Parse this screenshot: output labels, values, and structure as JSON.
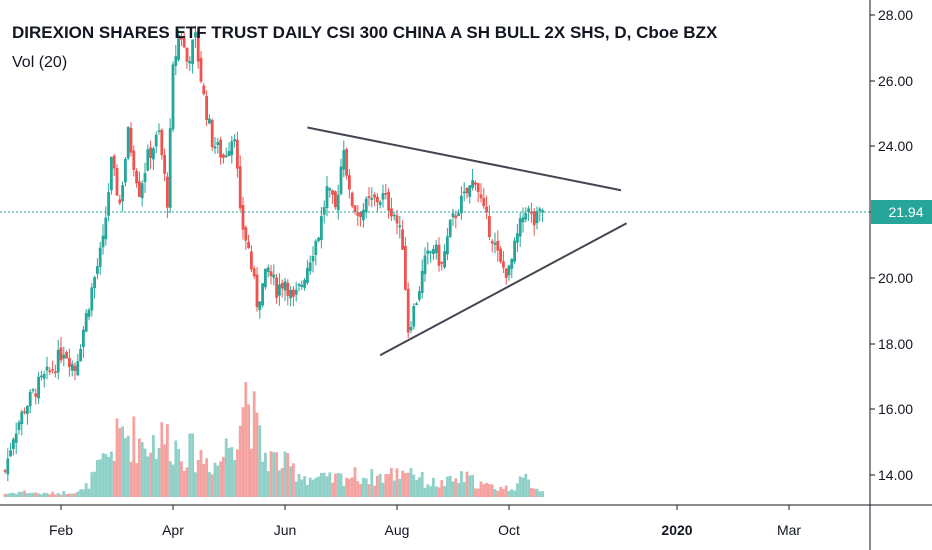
{
  "chart_data": {
    "type": "candlestick",
    "title": "DIREXION SHARES ETF TRUST DAILY CSI 300 CHINA A SH BULL 2X SHS, D, Cboe BZX",
    "volume_label": "Vol (20)",
    "y_ticks": [
      "28.00",
      "26.00",
      "24.00",
      "22.00",
      "20.00",
      "18.00",
      "16.00",
      "14.00"
    ],
    "y_tick_values": [
      28,
      26,
      24,
      22,
      20,
      18,
      16,
      14
    ],
    "x_ticks": [
      {
        "label": "Feb",
        "month": 1,
        "bold": false
      },
      {
        "label": "Apr",
        "month": 3,
        "bold": false
      },
      {
        "label": "Jun",
        "month": 5,
        "bold": false
      },
      {
        "label": "Aug",
        "month": 7,
        "bold": false
      },
      {
        "label": "Oct",
        "month": 9,
        "bold": false
      },
      {
        "label": "2020",
        "month": 12,
        "bold": true
      },
      {
        "label": "Mar",
        "month": 14,
        "bold": false
      }
    ],
    "last_price": "21.94",
    "last_price_value": 21.94,
    "colors": {
      "up": "#26a69a",
      "down": "#ef5350",
      "volume_up": "#8fd0c8",
      "volume_down": "#f5a3a1",
      "price_line": "#26a69a",
      "trendline": "#434651"
    },
    "trendlines": [
      {
        "from": {
          "month": 5.4,
          "value": 24.5
        },
        "to": {
          "month": 11.0,
          "value": 22.6
        }
      },
      {
        "from": {
          "month": 6.7,
          "value": 17.6
        },
        "to": {
          "month": 11.1,
          "value": 21.6
        }
      }
    ],
    "path": [
      [
        0.0,
        14.1
      ],
      [
        0.15,
        15.2
      ],
      [
        0.35,
        16.0
      ],
      [
        0.6,
        16.7
      ],
      [
        0.85,
        17.2
      ],
      [
        1.05,
        17.8
      ],
      [
        1.25,
        17.2
      ],
      [
        1.4,
        18.4
      ],
      [
        1.55,
        19.6
      ],
      [
        1.75,
        21.0
      ],
      [
        1.9,
        23.4
      ],
      [
        2.05,
        22.2
      ],
      [
        2.2,
        24.3
      ],
      [
        2.4,
        22.6
      ],
      [
        2.55,
        23.6
      ],
      [
        2.75,
        24.3
      ],
      [
        2.9,
        22.3
      ],
      [
        3.0,
        26.2
      ],
      [
        3.12,
        27.5
      ],
      [
        3.25,
        26.5
      ],
      [
        3.4,
        27.2
      ],
      [
        3.55,
        25.4
      ],
      [
        3.7,
        24.1
      ],
      [
        3.9,
        23.6
      ],
      [
        4.1,
        24.4
      ],
      [
        4.2,
        21.8
      ],
      [
        4.35,
        20.8
      ],
      [
        4.5,
        19.2
      ],
      [
        4.7,
        20.2
      ],
      [
        4.85,
        19.6
      ],
      [
        5.0,
        19.9
      ],
      [
        5.15,
        19.2
      ],
      [
        5.3,
        19.8
      ],
      [
        5.45,
        20.6
      ],
      [
        5.6,
        21.3
      ],
      [
        5.75,
        22.6
      ],
      [
        5.9,
        22.0
      ],
      [
        6.05,
        24.0
      ],
      [
        6.15,
        22.4
      ],
      [
        6.3,
        21.9
      ],
      [
        6.5,
        22.2
      ],
      [
        6.75,
        22.4
      ],
      [
        6.95,
        21.9
      ],
      [
        7.1,
        21.0
      ],
      [
        7.2,
        18.4
      ],
      [
        7.35,
        19.3
      ],
      [
        7.5,
        20.4
      ],
      [
        7.65,
        20.9
      ],
      [
        7.8,
        20.3
      ],
      [
        7.95,
        21.5
      ],
      [
        8.1,
        22.1
      ],
      [
        8.25,
        22.5
      ],
      [
        8.4,
        23.0
      ],
      [
        8.55,
        21.9
      ],
      [
        8.7,
        21.2
      ],
      [
        8.85,
        20.3
      ],
      [
        9.0,
        20.1
      ],
      [
        9.15,
        21.2
      ],
      [
        9.3,
        22.1
      ],
      [
        9.45,
        21.6
      ],
      [
        9.6,
        22.0
      ]
    ],
    "volume_path": [
      [
        0.0,
        0.03
      ],
      [
        0.3,
        0.05
      ],
      [
        0.7,
        0.03
      ],
      [
        1.0,
        0.04
      ],
      [
        1.4,
        0.06
      ],
      [
        1.8,
        0.35
      ],
      [
        2.1,
        0.6
      ],
      [
        2.5,
        0.5
      ],
      [
        2.9,
        0.55
      ],
      [
        3.1,
        0.45
      ],
      [
        3.4,
        0.4
      ],
      [
        3.8,
        0.3
      ],
      [
        4.1,
        0.6
      ],
      [
        4.3,
        1.0
      ],
      [
        4.6,
        0.4
      ],
      [
        5.0,
        0.3
      ],
      [
        5.4,
        0.18
      ],
      [
        5.8,
        0.16
      ],
      [
        6.2,
        0.2
      ],
      [
        6.6,
        0.18
      ],
      [
        7.0,
        0.22
      ],
      [
        7.2,
        0.28
      ],
      [
        7.5,
        0.14
      ],
      [
        7.8,
        0.12
      ],
      [
        8.2,
        0.18
      ],
      [
        8.6,
        0.1
      ],
      [
        9.0,
        0.08
      ],
      [
        9.3,
        0.16
      ],
      [
        9.6,
        0.05
      ]
    ]
  }
}
